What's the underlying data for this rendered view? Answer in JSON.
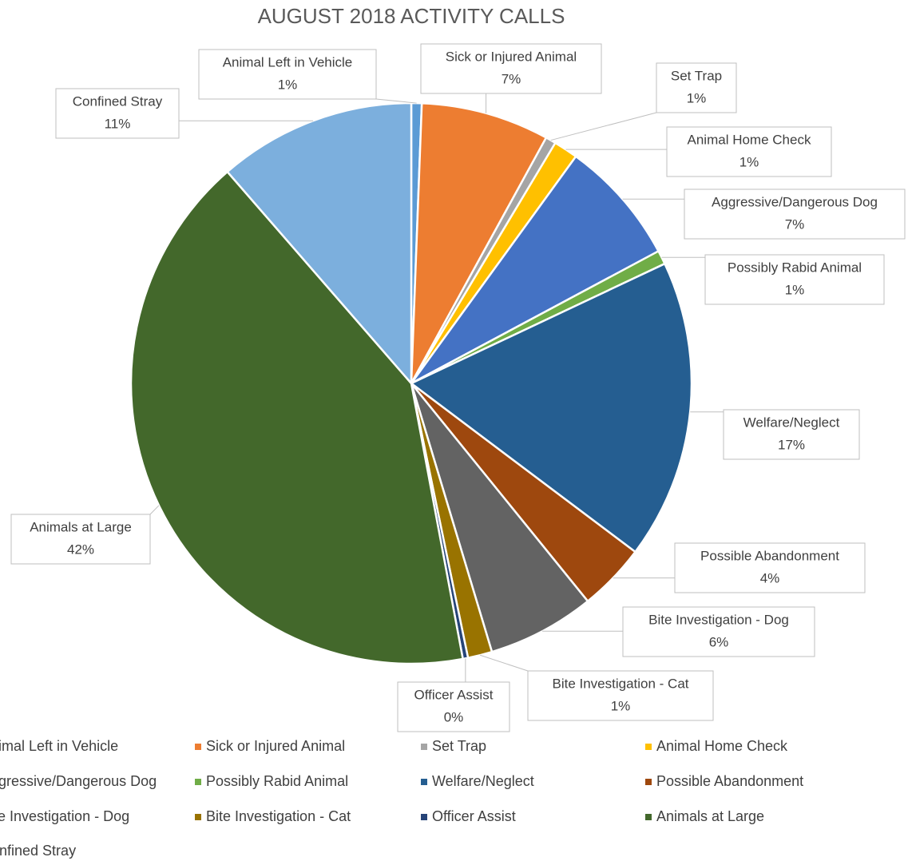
{
  "chart_data": {
    "type": "pie",
    "title": "AUGUST 2018 ACTIVITY CALLS",
    "categories": [
      "Animal Left in Vehicle",
      "Sick or Injured Animal",
      "Set Trap",
      "Animal Home Check",
      "Aggressive/Dangerous Dog",
      "Possibly Rabid Animal",
      "Welfare/Neglect",
      "Possible Abandonment",
      "Bite Investigation - Dog",
      "Bite Investigation - Cat",
      "Officer Assist",
      "Animals at Large",
      "Confined Stray"
    ],
    "values": [
      0.6,
      7.4,
      0.6,
      1.4,
      7.2,
      0.8,
      17.3,
      3.9,
      6.2,
      1.4,
      0.3,
      41.6,
      11.4
    ],
    "value_labels": [
      "1%",
      "7%",
      "1%",
      "1%",
      "7%",
      "1%",
      "17%",
      "4%",
      "6%",
      "1%",
      "0%",
      "42%",
      "11%"
    ],
    "colors": [
      "#5B9BD5",
      "#ED7D31",
      "#A5A5A5",
      "#FFC000",
      "#4472C4",
      "#70AD47",
      "#255E91",
      "#9E480E",
      "#636363",
      "#997300",
      "#264478",
      "#43682B",
      "#7CAFDD"
    ],
    "legend": "bottom"
  }
}
